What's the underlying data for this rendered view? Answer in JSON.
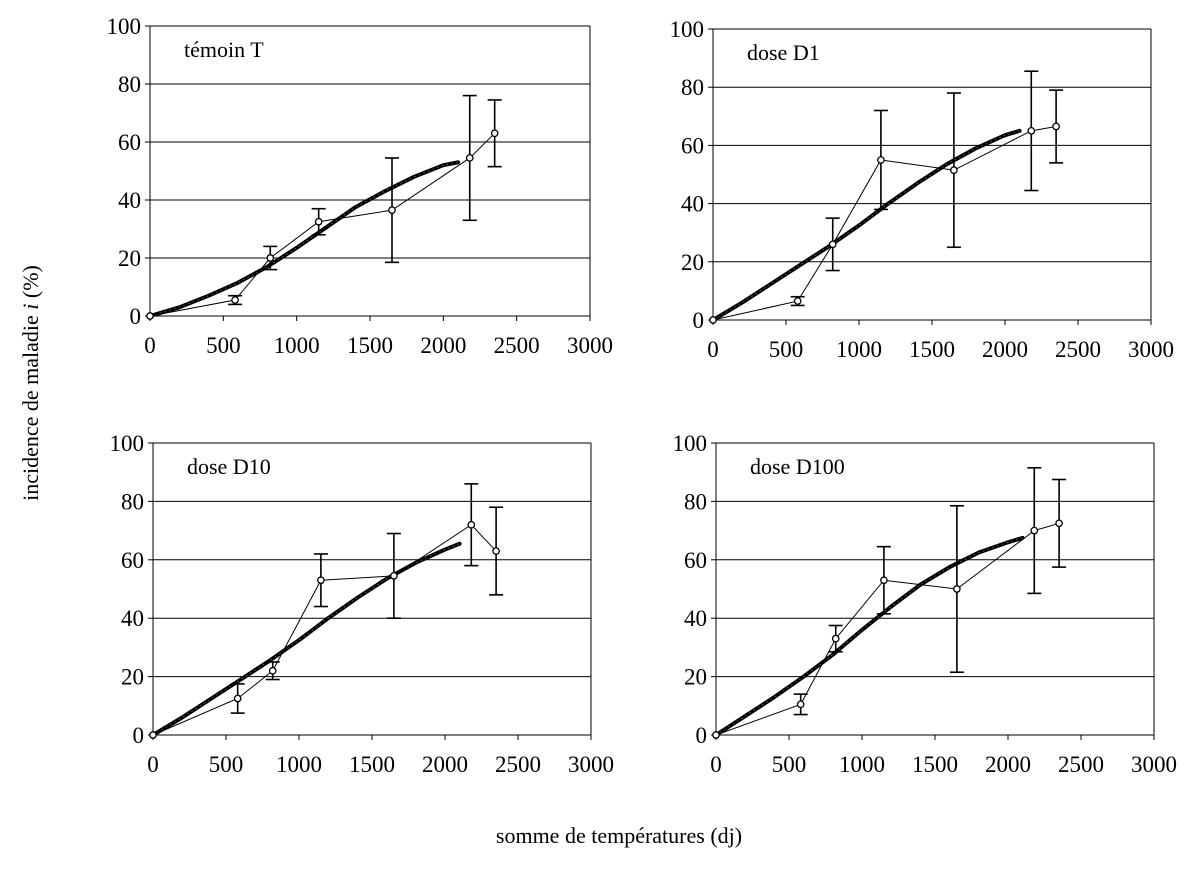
{
  "figure": {
    "shared_ylabel": "incidence de maladie i (%)",
    "shared_ylabel_prefix": "incidence de maladie ",
    "shared_ylabel_italic": "i",
    "shared_ylabel_suffix": " (%)",
    "shared_xlabel": "somme de températures (dj)",
    "colors": {
      "grid": "#000000",
      "model": "#000000",
      "observed": "#000000",
      "marker_fill": "#ffffff"
    }
  },
  "chart_data": [
    {
      "type": "line",
      "title": "témoin T",
      "xlim": [
        0,
        3000
      ],
      "ylim": [
        0,
        100
      ],
      "xticks": [
        0,
        500,
        1000,
        1500,
        2000,
        2500,
        3000
      ],
      "yticks": [
        0,
        20,
        40,
        60,
        80,
        100
      ],
      "grid": true,
      "series": [
        {
          "role": "model",
          "x": [
            0,
            200,
            400,
            600,
            800,
            1000,
            1200,
            1400,
            1600,
            1800,
            2000,
            2100
          ],
          "y": [
            0,
            3,
            7,
            11.5,
            17,
            23.5,
            30.5,
            37.5,
            43,
            48,
            52,
            53
          ]
        },
        {
          "role": "observed",
          "x": [
            0,
            580,
            820,
            1150,
            1650,
            2180,
            2350
          ],
          "y": [
            0,
            5.5,
            20,
            32.5,
            36.5,
            54.5,
            63
          ],
          "error": [
            0,
            1.5,
            4,
            4.5,
            18,
            21.5,
            11.5
          ]
        }
      ]
    },
    {
      "type": "line",
      "title": "dose D1",
      "xlim": [
        0,
        3000
      ],
      "ylim": [
        0,
        100
      ],
      "xticks": [
        0,
        500,
        1000,
        1500,
        2000,
        2500,
        3000
      ],
      "yticks": [
        0,
        20,
        40,
        60,
        80,
        100
      ],
      "grid": true,
      "series": [
        {
          "role": "model",
          "x": [
            0,
            200,
            400,
            600,
            800,
            1000,
            1200,
            1400,
            1600,
            1800,
            2000,
            2100
          ],
          "y": [
            0,
            6,
            12.5,
            19,
            25.5,
            32.5,
            40,
            47,
            53.5,
            59,
            63.5,
            65
          ]
        },
        {
          "role": "observed",
          "x": [
            0,
            580,
            820,
            1150,
            1650,
            2180,
            2350
          ],
          "y": [
            0,
            6.5,
            26,
            55,
            51.5,
            65,
            66.5
          ],
          "error": [
            0,
            1.5,
            9,
            17,
            26.5,
            20.5,
            12.5
          ]
        }
      ]
    },
    {
      "type": "line",
      "title": "dose D10",
      "xlim": [
        0,
        3000
      ],
      "ylim": [
        0,
        100
      ],
      "xticks": [
        0,
        500,
        1000,
        1500,
        2000,
        2500,
        3000
      ],
      "yticks": [
        0,
        20,
        40,
        60,
        80,
        100
      ],
      "grid": true,
      "series": [
        {
          "role": "model",
          "x": [
            0,
            200,
            400,
            600,
            800,
            1000,
            1200,
            1400,
            1600,
            1800,
            2000,
            2100
          ],
          "y": [
            0,
            6,
            12.5,
            19,
            25.5,
            32.5,
            40,
            47,
            53.5,
            59,
            63.5,
            65.5
          ]
        },
        {
          "role": "observed",
          "x": [
            0,
            580,
            820,
            1150,
            1650,
            2180,
            2350
          ],
          "y": [
            0,
            12.5,
            22,
            53,
            54.5,
            72,
            63
          ],
          "error": [
            0,
            5,
            3,
            9,
            14.5,
            14,
            15
          ]
        }
      ]
    },
    {
      "type": "line",
      "title": "dose D100",
      "xlim": [
        0,
        3000
      ],
      "ylim": [
        0,
        100
      ],
      "xticks": [
        0,
        500,
        1000,
        1500,
        2000,
        2500,
        3000
      ],
      "yticks": [
        0,
        20,
        40,
        60,
        80,
        100
      ],
      "grid": true,
      "series": [
        {
          "role": "model",
          "x": [
            0,
            200,
            400,
            600,
            800,
            1000,
            1200,
            1400,
            1600,
            1800,
            2000,
            2100
          ],
          "y": [
            0,
            6.5,
            13,
            20,
            27.5,
            36,
            44,
            51.5,
            57.5,
            62.5,
            66,
            67.5
          ]
        },
        {
          "role": "observed",
          "x": [
            0,
            580,
            820,
            1150,
            1650,
            2180,
            2350
          ],
          "y": [
            0,
            10.5,
            33,
            53,
            50,
            70,
            72.5
          ],
          "error": [
            0,
            3.5,
            4.5,
            11.5,
            28.5,
            21.5,
            15
          ]
        }
      ]
    }
  ]
}
